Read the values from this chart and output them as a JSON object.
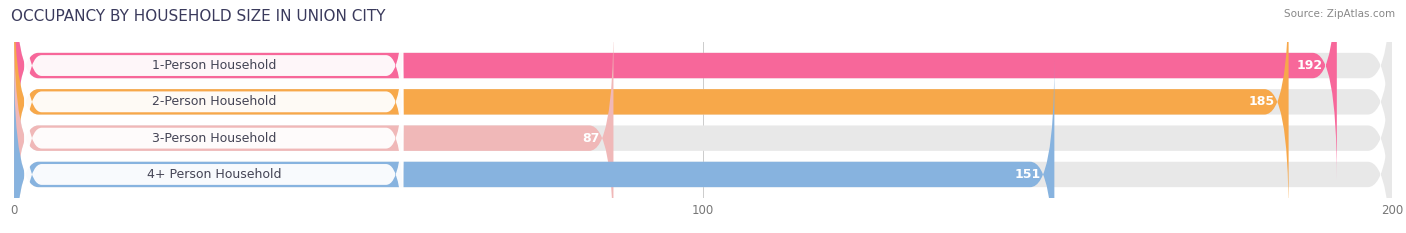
{
  "title": "OCCUPANCY BY HOUSEHOLD SIZE IN UNION CITY",
  "source": "Source: ZipAtlas.com",
  "categories": [
    "1-Person Household",
    "2-Person Household",
    "3-Person Household",
    "4+ Person Household"
  ],
  "values": [
    192,
    185,
    87,
    151
  ],
  "bar_colors": [
    "#f7679a",
    "#f7a84a",
    "#f0b8b8",
    "#87b3df"
  ],
  "bar_bg_color": "#e8e8e8",
  "label_bg_color": "#ffffff",
  "xlim": [
    0,
    200
  ],
  "xticks": [
    0,
    100,
    200
  ],
  "figsize": [
    14.06,
    2.33
  ],
  "dpi": 100,
  "title_color": "#3a3a5c",
  "source_color": "#888888",
  "label_color": "#444455",
  "value_color_inside": "#ffffff",
  "value_color_outside": "#666666",
  "background_color": "#ffffff",
  "title_fontsize": 11,
  "label_fontsize": 9,
  "value_fontsize": 9
}
